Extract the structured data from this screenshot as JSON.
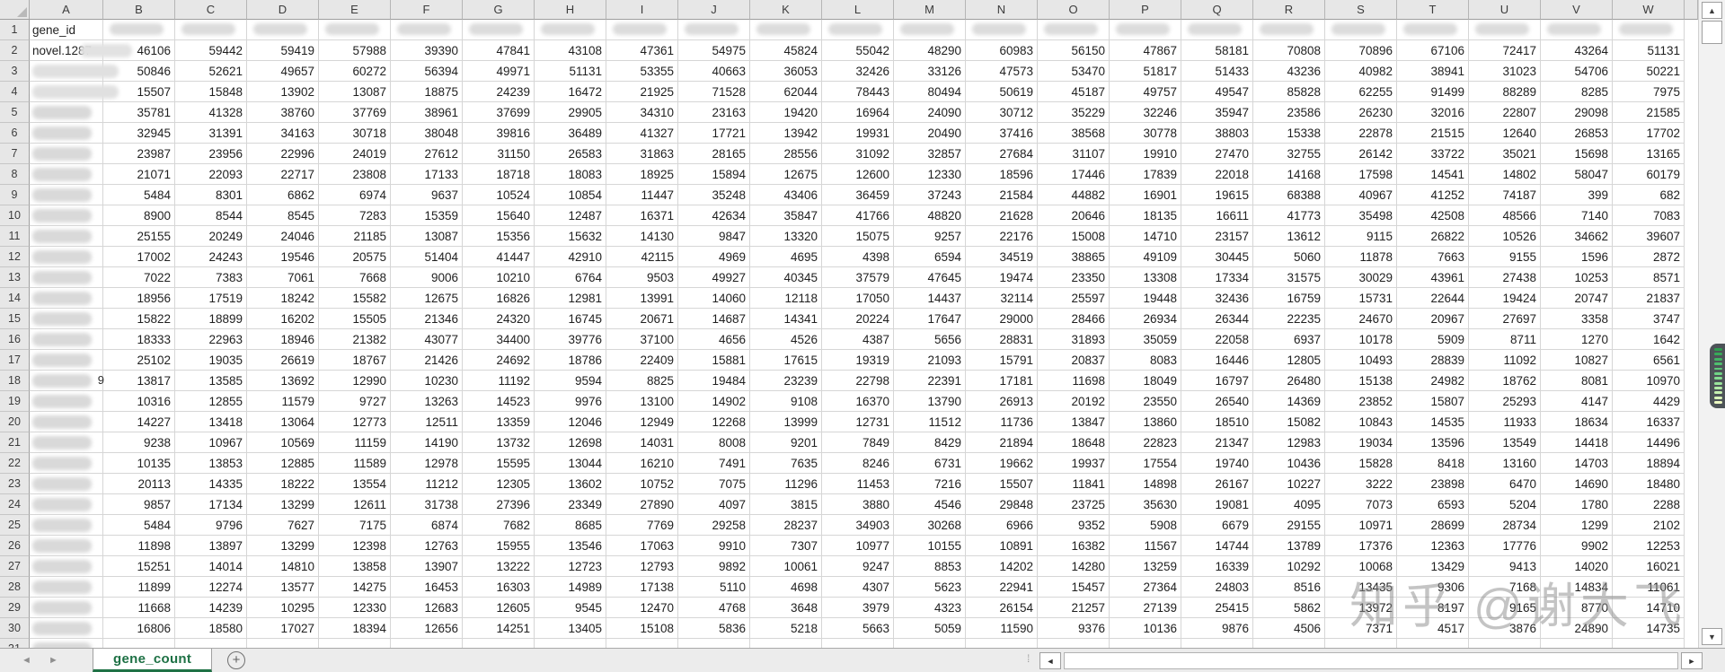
{
  "colors": {
    "accent_green": "#1e7145",
    "header_bg": "#e7e7e7",
    "gridline": "#d6d6d6",
    "watermark_gray": "#8f8f8f",
    "stripe_colors": [
      "#2e9e4e",
      "#37aa58",
      "#42b563",
      "#4fc06e",
      "#5eca79",
      "#70d485",
      "#84dc90",
      "#9ae49b",
      "#b0eba6",
      "#c6f0b0",
      "#daf5ba",
      "#ecf9c2"
    ]
  },
  "grid": {
    "columns": [
      "A",
      "B",
      "C",
      "D",
      "E",
      "F",
      "G",
      "H",
      "I",
      "J",
      "K",
      "L",
      "M",
      "N",
      "O",
      "P",
      "Q",
      "R",
      "S",
      "T",
      "U",
      "V",
      "W"
    ],
    "row_numbers": [
      1,
      2,
      3,
      4,
      5,
      6,
      7,
      8,
      9,
      10,
      11,
      12,
      13,
      14,
      15,
      16,
      17,
      18,
      19,
      20,
      21,
      22,
      23,
      24,
      25,
      26,
      27,
      28,
      29,
      30,
      31
    ],
    "header_row": {
      "a_value": "gene_id"
    },
    "first_gene_id": "novel.1287",
    "a18_overflow_char": "9",
    "rows": [
      {
        "n": 2,
        "values": [
          46106,
          59442,
          59419,
          57988,
          39390,
          47841,
          43108,
          47361,
          54975,
          45824,
          55042,
          48290,
          60983,
          56150,
          47867,
          58181,
          70808,
          70896,
          67106,
          72417,
          43264,
          51131
        ]
      },
      {
        "n": 3,
        "values": [
          50846,
          52621,
          49657,
          60272,
          56394,
          49971,
          51131,
          53355,
          40663,
          36053,
          32426,
          33126,
          47573,
          53470,
          51817,
          51433,
          43236,
          40982,
          38941,
          31023,
          54706,
          50221
        ]
      },
      {
        "n": 4,
        "values": [
          15507,
          15848,
          13902,
          13087,
          18875,
          24239,
          16472,
          21925,
          71528,
          62044,
          78443,
          80494,
          50619,
          45187,
          49757,
          49547,
          85828,
          62255,
          91499,
          88289,
          8285,
          7975
        ]
      },
      {
        "n": 5,
        "values": [
          35781,
          41328,
          38760,
          37769,
          38961,
          37699,
          29905,
          34310,
          23163,
          19420,
          16964,
          24090,
          30712,
          35229,
          32246,
          35947,
          23586,
          26230,
          32016,
          22807,
          29098,
          21585
        ]
      },
      {
        "n": 6,
        "values": [
          32945,
          31391,
          34163,
          30718,
          38048,
          39816,
          36489,
          41327,
          17721,
          13942,
          19931,
          20490,
          37416,
          38568,
          30778,
          38803,
          15338,
          22878,
          21515,
          12640,
          26853,
          17702
        ]
      },
      {
        "n": 7,
        "values": [
          23987,
          23956,
          22996,
          24019,
          27612,
          31150,
          26583,
          31863,
          28165,
          28556,
          31092,
          32857,
          27684,
          31107,
          19910,
          27470,
          32755,
          26142,
          33722,
          35021,
          15698,
          13165
        ]
      },
      {
        "n": 8,
        "values": [
          21071,
          22093,
          22717,
          23808,
          17133,
          18718,
          18083,
          18925,
          15894,
          12675,
          12600,
          12330,
          18596,
          17446,
          17839,
          22018,
          14168,
          17598,
          14541,
          14802,
          58047,
          60179
        ]
      },
      {
        "n": 9,
        "values": [
          5484,
          8301,
          6862,
          6974,
          9637,
          10524,
          10854,
          11447,
          35248,
          43406,
          36459,
          37243,
          21584,
          44882,
          16901,
          19615,
          68388,
          40967,
          41252,
          74187,
          399,
          682
        ]
      },
      {
        "n": 10,
        "values": [
          8900,
          8544,
          8545,
          7283,
          15359,
          15640,
          12487,
          16371,
          42634,
          35847,
          41766,
          48820,
          21628,
          20646,
          18135,
          16611,
          41773,
          35498,
          42508,
          48566,
          7140,
          7083
        ]
      },
      {
        "n": 11,
        "values": [
          25155,
          20249,
          24046,
          21185,
          13087,
          15356,
          15632,
          14130,
          9847,
          13320,
          15075,
          9257,
          22176,
          15008,
          14710,
          23157,
          13612,
          9115,
          26822,
          10526,
          34662,
          39607
        ]
      },
      {
        "n": 12,
        "values": [
          17002,
          24243,
          19546,
          20575,
          51404,
          41447,
          42910,
          42115,
          4969,
          4695,
          4398,
          6594,
          34519,
          38865,
          49109,
          30445,
          5060,
          11878,
          7663,
          9155,
          1596,
          2872
        ]
      },
      {
        "n": 13,
        "values": [
          7022,
          7383,
          7061,
          7668,
          9006,
          10210,
          6764,
          9503,
          49927,
          40345,
          37579,
          47645,
          19474,
          23350,
          13308,
          17334,
          31575,
          30029,
          43961,
          27438,
          10253,
          8571
        ]
      },
      {
        "n": 14,
        "values": [
          18956,
          17519,
          18242,
          15582,
          12675,
          16826,
          12981,
          13991,
          14060,
          12118,
          17050,
          14437,
          32114,
          25597,
          19448,
          32436,
          16759,
          15731,
          22644,
          19424,
          20747,
          21837
        ]
      },
      {
        "n": 15,
        "values": [
          15822,
          18899,
          16202,
          15505,
          21346,
          24320,
          16745,
          20671,
          14687,
          14341,
          20224,
          17647,
          29000,
          28466,
          26934,
          26344,
          22235,
          24670,
          20967,
          27697,
          3358,
          3747
        ]
      },
      {
        "n": 16,
        "values": [
          18333,
          22963,
          18946,
          21382,
          43077,
          34400,
          39776,
          37100,
          4656,
          4526,
          4387,
          5656,
          28831,
          31893,
          35059,
          22058,
          6937,
          10178,
          5909,
          8711,
          1270,
          1642
        ]
      },
      {
        "n": 17,
        "values": [
          25102,
          19035,
          26619,
          18767,
          21426,
          24692,
          18786,
          22409,
          15881,
          17615,
          19319,
          21093,
          15791,
          20837,
          8083,
          16446,
          12805,
          10493,
          28839,
          11092,
          10827,
          6561
        ]
      },
      {
        "n": 18,
        "values": [
          13817,
          13585,
          13692,
          12990,
          10230,
          11192,
          9594,
          8825,
          19484,
          23239,
          22798,
          22391,
          17181,
          11698,
          18049,
          16797,
          26480,
          15138,
          24982,
          18762,
          8081,
          10970
        ]
      },
      {
        "n": 19,
        "values": [
          10316,
          12855,
          11579,
          9727,
          13263,
          14523,
          9976,
          13100,
          14902,
          9108,
          16370,
          13790,
          26913,
          20192,
          23550,
          26540,
          14369,
          23852,
          15807,
          25293,
          4147,
          4429
        ]
      },
      {
        "n": 20,
        "values": [
          14227,
          13418,
          13064,
          12773,
          12511,
          13359,
          12046,
          12949,
          12268,
          13999,
          12731,
          11512,
          11736,
          13847,
          13860,
          18510,
          15082,
          10843,
          14535,
          11933,
          18634,
          16337
        ]
      },
      {
        "n": 21,
        "values": [
          9238,
          10967,
          10569,
          11159,
          14190,
          13732,
          12698,
          14031,
          8008,
          9201,
          7849,
          8429,
          21894,
          18648,
          22823,
          21347,
          12983,
          19034,
          13596,
          13549,
          14418,
          14496
        ]
      },
      {
        "n": 22,
        "values": [
          10135,
          13853,
          12885,
          11589,
          12978,
          15595,
          13044,
          16210,
          7491,
          7635,
          8246,
          6731,
          19662,
          19937,
          17554,
          19740,
          10436,
          15828,
          8418,
          13160,
          14703,
          18894
        ]
      },
      {
        "n": 23,
        "values": [
          20113,
          14335,
          18222,
          13554,
          11212,
          12305,
          13602,
          10752,
          7075,
          11296,
          11453,
          7216,
          15507,
          11841,
          14898,
          26167,
          10227,
          3222,
          23898,
          6470,
          14690,
          18480
        ]
      },
      {
        "n": 24,
        "values": [
          9857,
          17134,
          13299,
          12611,
          31738,
          27396,
          23349,
          27890,
          4097,
          3815,
          3880,
          4546,
          29848,
          23725,
          35630,
          19081,
          4095,
          7073,
          6593,
          5204,
          1780,
          2288
        ]
      },
      {
        "n": 25,
        "values": [
          5484,
          9796,
          7627,
          7175,
          6874,
          7682,
          8685,
          7769,
          29258,
          28237,
          34903,
          30268,
          6966,
          9352,
          5908,
          6679,
          29155,
          10971,
          28699,
          28734,
          1299,
          2102
        ]
      },
      {
        "n": 26,
        "values": [
          11898,
          13897,
          13299,
          12398,
          12763,
          15955,
          13546,
          17063,
          9910,
          7307,
          10977,
          10155,
          10891,
          16382,
          11567,
          14744,
          13789,
          17376,
          12363,
          17776,
          9902,
          12253
        ]
      },
      {
        "n": 27,
        "values": [
          15251,
          14014,
          14810,
          13858,
          13907,
          13222,
          12723,
          12793,
          9892,
          10061,
          9247,
          8853,
          14202,
          14280,
          13259,
          16339,
          10292,
          10068,
          13429,
          9413,
          14020,
          16021
        ]
      },
      {
        "n": 28,
        "values": [
          11899,
          12274,
          13577,
          14275,
          16453,
          16303,
          14989,
          17138,
          5110,
          4698,
          4307,
          5623,
          22941,
          15457,
          27364,
          24803,
          8516,
          13435,
          9306,
          7168,
          14834,
          11061
        ]
      },
      {
        "n": 29,
        "values": [
          11668,
          14239,
          10295,
          12330,
          12683,
          12605,
          9545,
          12470,
          4768,
          3648,
          3979,
          4323,
          26154,
          21257,
          27139,
          25415,
          5862,
          13972,
          8197,
          9165,
          8770,
          14710
        ]
      },
      {
        "n": 30,
        "values": [
          16806,
          18580,
          17027,
          18394,
          12656,
          14251,
          13405,
          15108,
          5836,
          5218,
          5663,
          5059,
          11590,
          9376,
          10136,
          9876,
          4506,
          7371,
          4517,
          3876,
          24890,
          14735
        ]
      }
    ],
    "partial_row_number": 31
  },
  "tabbar": {
    "active_tab": "gene_count",
    "add_sheet_symbol": "+",
    "nav_back_symbol": "◄",
    "nav_forward_symbol": "►",
    "splitter_symbol": "⁞",
    "hscroll_left_symbol": "◄",
    "hscroll_right_symbol": "►"
  },
  "scrollbar": {
    "up_symbol": "▲",
    "down_symbol": "▼"
  },
  "watermark": {
    "text": "知乎 @谢大飞"
  }
}
